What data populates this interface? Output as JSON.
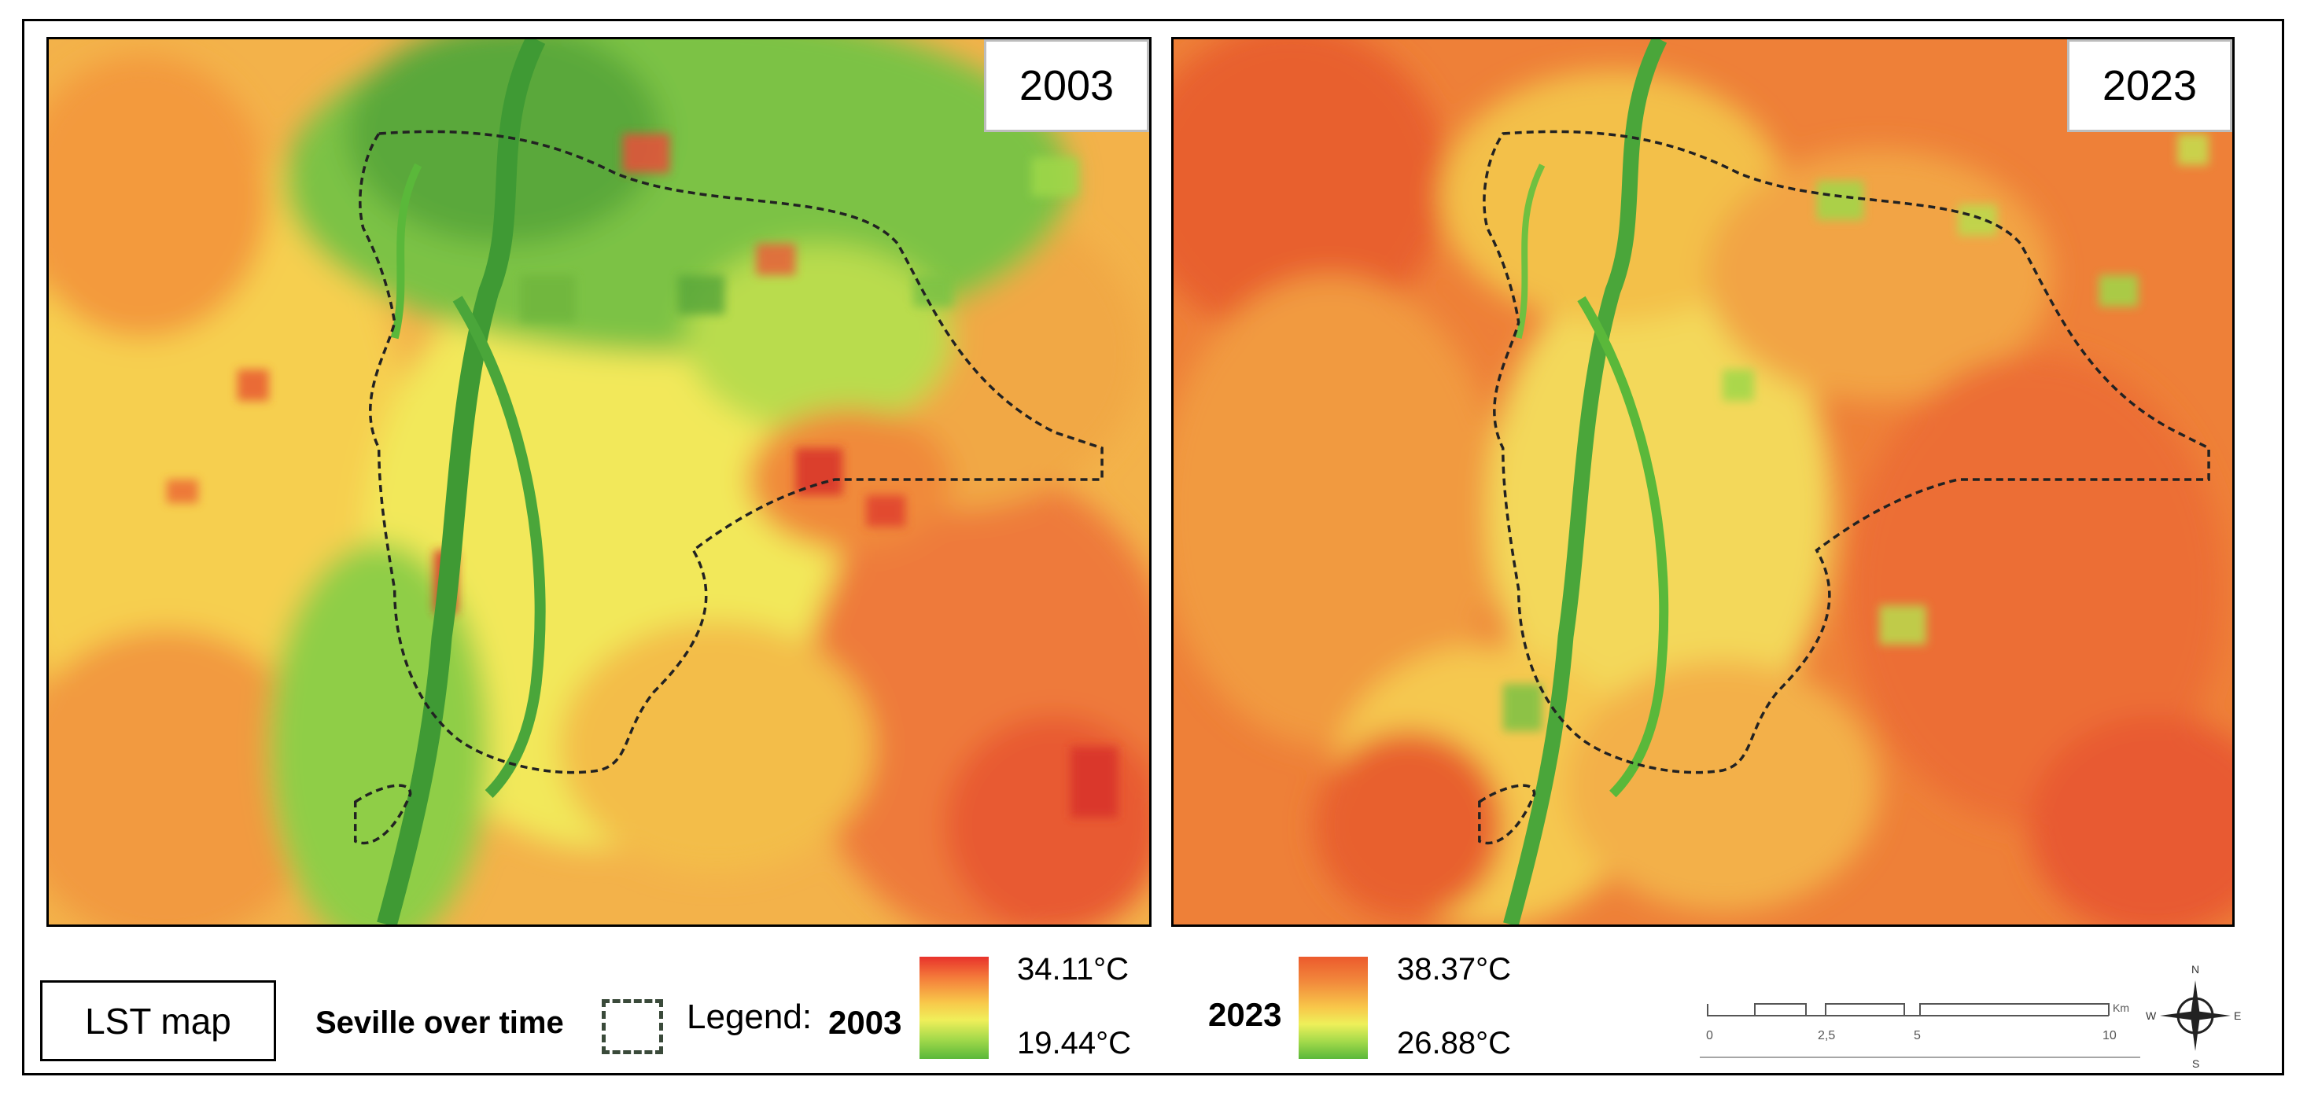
{
  "panels": [
    {
      "year": "2003"
    },
    {
      "year": "2023"
    }
  ],
  "legend": {
    "map_box_label": "LST map",
    "boundary_label": "Seville over time",
    "legend_prefix": "Legend:",
    "ramp_2003": {
      "year": "2003",
      "max": "34.11°C",
      "min": "19.44°C"
    },
    "ramp_2023": {
      "year": "2023",
      "max": "38.37°C",
      "min": "26.88°C"
    }
  },
  "scale": {
    "ticks": [
      "0",
      "2,5",
      "5",
      "10"
    ],
    "unit": "Km"
  },
  "compass": {
    "n": "N",
    "s": "S",
    "e": "E",
    "w": "W"
  },
  "colors": {
    "hot": "#e8322b",
    "warm": "#f47a3a",
    "mid": "#f0ef5a",
    "cool": "#5ab83a",
    "boundary": "#222222"
  }
}
